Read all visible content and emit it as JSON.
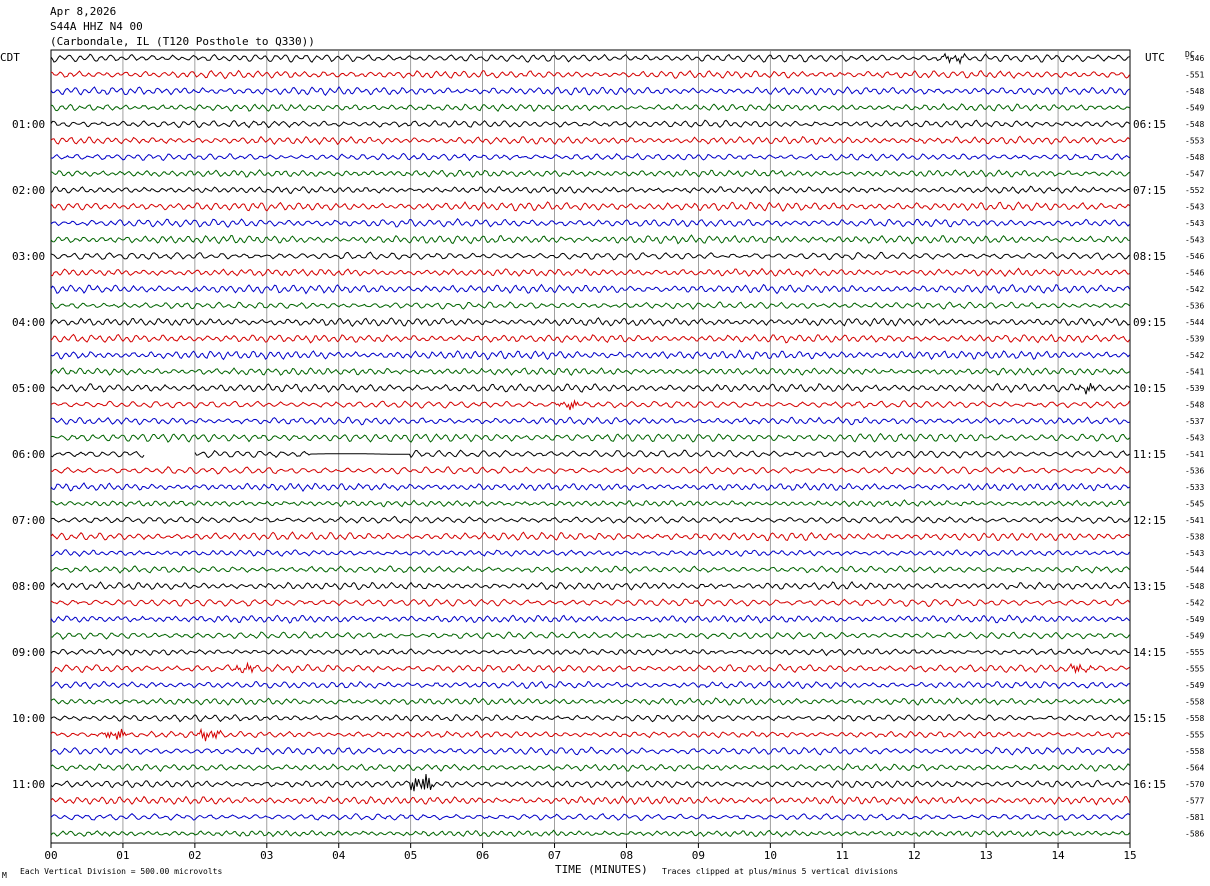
{
  "header": {
    "date": "Apr 8,2026",
    "channel": "S44A HHZ N4 00",
    "location": "(Carbondale, IL (T120 Posthole to Q330))"
  },
  "left_axis_title": "CDT",
  "right_axis_title": "UTC",
  "dc_title": "DC",
  "footer": {
    "vertical_division": "Each Vertical Division =  500.00 microvolts",
    "xlabel": "TIME (MINUTES)",
    "clip_note": "Traces clipped at plus/minus 5 vertical divisions",
    "corner_mark": "M"
  },
  "colors": {
    "black": "#000000",
    "red": "#d40000",
    "blue": "#0000c8",
    "green": "#006400",
    "grid": "#888888"
  },
  "chart_data": {
    "type": "line",
    "title": "S44A HHZ N4 00",
    "xlabel": "TIME (MINUTES)",
    "xlim": [
      0,
      15
    ],
    "x_ticks": [
      "00",
      "01",
      "02",
      "03",
      "04",
      "05",
      "06",
      "07",
      "08",
      "09",
      "10",
      "11",
      "12",
      "13",
      "14",
      "15"
    ],
    "trace_minutes": 15,
    "trace_colors_cycle": [
      "black",
      "red",
      "blue",
      "green"
    ],
    "left_hour_labels": [
      "01:00",
      "02:00",
      "03:00",
      "04:00",
      "05:00",
      "06:00",
      "07:00",
      "08:00",
      "09:00",
      "10:00",
      "11:00"
    ],
    "right_hour_labels": [
      "06:15",
      "07:15",
      "08:15",
      "09:15",
      "10:15",
      "11:15",
      "12:15",
      "13:15",
      "14:15",
      "15:15",
      "16:15"
    ],
    "dc_offsets": [
      -546,
      -551,
      -548,
      -549,
      -548,
      -553,
      -548,
      -547,
      -552,
      -543,
      -543,
      -543,
      -546,
      -546,
      -542,
      -536,
      -544,
      -539,
      -542,
      -541,
      -539,
      -548,
      -537,
      -543,
      -541,
      -536,
      -533,
      -545,
      -541,
      -538,
      -543,
      -544,
      -548,
      -542,
      -549,
      -549,
      -555,
      -555,
      -549,
      -558,
      -558,
      -555,
      -558,
      -564,
      -570,
      -577,
      -581,
      -586
    ],
    "events": [
      {
        "trace": 0,
        "minute": 12.55,
        "amplitude": "small"
      },
      {
        "trace": 20,
        "minute": 14.4,
        "amplitude": "small"
      },
      {
        "trace": 21,
        "minute": 7.2,
        "amplitude": "small"
      },
      {
        "trace": 37,
        "minute": 2.7,
        "amplitude": "small"
      },
      {
        "trace": 37,
        "minute": 14.3,
        "amplitude": "small"
      },
      {
        "trace": 41,
        "minute": 0.9,
        "amplitude": "medium"
      },
      {
        "trace": 41,
        "minute": 2.2,
        "amplitude": "medium"
      },
      {
        "trace": 44,
        "minute": 5.15,
        "amplitude": "large"
      }
    ],
    "data_gaps": [
      {
        "trace": 24,
        "start_minute": 1.3,
        "end_minute": 2.0
      },
      {
        "trace": 24,
        "start_minute": 3.6,
        "end_minute": 5.0,
        "flat": true
      }
    ]
  }
}
